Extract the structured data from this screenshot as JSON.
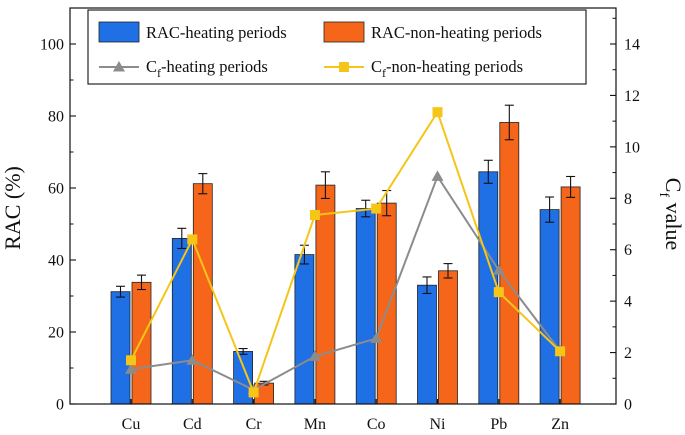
{
  "chart_data": {
    "type": "bar+line",
    "categories": [
      "Cu",
      "Cd",
      "Cr",
      "Mn",
      "Co",
      "Ni",
      "Pb",
      "Zn"
    ],
    "bar_series": [
      {
        "name": "RAC-heating periods",
        "legend_label": "RAC-heating periods",
        "color": "#1f6fe5",
        "values": [
          31.2,
          46.0,
          14.6,
          41.5,
          54.3,
          33.0,
          64.5,
          54.0
        ],
        "errors": [
          1.5,
          2.8,
          0.8,
          2.6,
          2.3,
          2.3,
          3.2,
          3.5
        ]
      },
      {
        "name": "RAC-non-heating periods",
        "legend_label": "RAC-non-heating periods",
        "color": "#f6661a",
        "values": [
          33.8,
          61.2,
          5.8,
          60.8,
          55.8,
          37.0,
          78.2,
          60.3
        ],
        "errors": [
          2.0,
          2.8,
          0.5,
          3.7,
          3.5,
          2.0,
          4.8,
          2.9
        ]
      }
    ],
    "line_series": [
      {
        "name": "Cf-heating periods",
        "legend_main": "C",
        "legend_sub": "f",
        "legend_rest": "-heating periods",
        "color": "#8c8c8c",
        "marker": "triangle",
        "values": [
          1.35,
          1.7,
          0.55,
          1.85,
          2.55,
          8.85,
          5.2,
          2.05
        ]
      },
      {
        "name": "Cf-non-heating periods",
        "legend_main": "C",
        "legend_sub": "f",
        "legend_rest": "-non-heating periods",
        "color": "#f5c518",
        "marker": "square",
        "values": [
          1.7,
          6.4,
          0.45,
          7.35,
          7.6,
          11.35,
          4.35,
          2.05
        ]
      }
    ],
    "y_left": {
      "label": "RAC (%)",
      "min": 0,
      "max": 110,
      "ticks": [
        0,
        20,
        40,
        60,
        80,
        100
      ]
    },
    "y_right": {
      "label_main": "C",
      "label_sub": "f",
      "label_rest": " value",
      "min": 0,
      "max": 15.4,
      "ticks": [
        0,
        2,
        4,
        6,
        8,
        10,
        12,
        14
      ]
    },
    "grid": false,
    "legend_position": "top"
  }
}
